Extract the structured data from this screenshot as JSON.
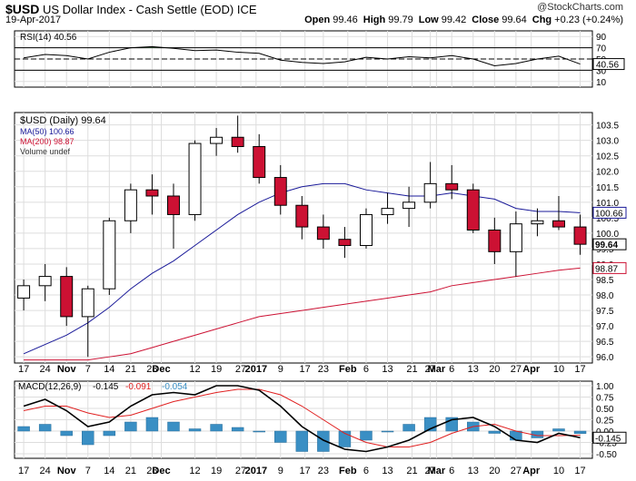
{
  "header": {
    "symbol": "$USD",
    "name": "US Dollar Index - Cash Settle (EOD)",
    "exchange": "ICE",
    "date": "19-Apr-2017",
    "watermark": "@StockCharts.com",
    "ohlc": [
      {
        "label": "Open",
        "value": "99.46"
      },
      {
        "label": "High",
        "value": "99.79"
      },
      {
        "label": "Low",
        "value": "99.42"
      },
      {
        "label": "Close",
        "value": "99.64"
      },
      {
        "label": "Chg",
        "value": "+0.23 (+0.24%)"
      }
    ]
  },
  "colors": {
    "up": "#ffffff",
    "down": "#cc1133",
    "ma50": "#1a1a99",
    "ma200": "#cc1133",
    "rsi_fill": "#5a8a5a",
    "macd_hist": "#3a8fc4",
    "macd_line": "#000000",
    "signal_line": "#e02020",
    "grid": "#dddddd"
  },
  "chart_data": [
    {
      "type": "line",
      "panel": "RSI",
      "legend": "RSI(14) 40.56",
      "last_value_label": "40.56",
      "ylim": [
        0,
        100
      ],
      "yticks": [
        "90",
        "70",
        "50",
        "30",
        "10"
      ],
      "reference_lines": [
        70,
        50,
        30
      ],
      "x": [
        "2016-10-17",
        "2016-10-24",
        "2016-10-31",
        "2016-11-07",
        "2016-11-14",
        "2016-11-21",
        "2016-11-28",
        "2016-12-05",
        "2016-12-12",
        "2016-12-19",
        "2016-12-26",
        "2017-01-02",
        "2017-01-09",
        "2017-01-16",
        "2017-01-23",
        "2017-01-30",
        "2017-02-06",
        "2017-02-13",
        "2017-02-20",
        "2017-02-27",
        "2017-03-06",
        "2017-03-13",
        "2017-03-20",
        "2017-03-27",
        "2017-04-03",
        "2017-04-10",
        "2017-04-17"
      ],
      "values": [
        52,
        58,
        56,
        50,
        62,
        70,
        72,
        69,
        65,
        66,
        62,
        60,
        48,
        44,
        42,
        45,
        53,
        50,
        54,
        52,
        56,
        50,
        38,
        42,
        50,
        55,
        41
      ]
    },
    {
      "type": "candlestick",
      "panel": "Price",
      "legend": [
        {
          "name": "$USD (Daily) 99.64"
        },
        {
          "name": "MA(50) 100.66"
        },
        {
          "name": "MA(200) 98.87"
        },
        {
          "name": "Volume undef"
        }
      ],
      "last_price_label": "99.64",
      "ma50_label": "100.66",
      "ma200_label": "98.87",
      "ylim": [
        95.8,
        103.9
      ],
      "yticks": [
        "103.5",
        "103.0",
        "102.5",
        "102.0",
        "101.5",
        "101.0",
        "100.5",
        "100.0",
        "99.5",
        "99.0",
        "98.5",
        "98.0",
        "97.5",
        "97.0",
        "96.5",
        "96.0"
      ],
      "x": [
        "2016-10-17",
        "2016-10-24",
        "2016-10-31",
        "2016-11-07",
        "2016-11-14",
        "2016-11-21",
        "2016-11-28",
        "2016-12-05",
        "2016-12-12",
        "2016-12-19",
        "2016-12-26",
        "2017-01-02",
        "2017-01-09",
        "2017-01-16",
        "2017-01-23",
        "2017-01-30",
        "2017-02-06",
        "2017-02-13",
        "2017-02-20",
        "2017-02-27",
        "2017-03-06",
        "2017-03-13",
        "2017-03-20",
        "2017-03-27",
        "2017-04-03",
        "2017-04-10",
        "2017-04-17"
      ],
      "open": [
        97.9,
        98.3,
        98.6,
        97.3,
        98.2,
        100.4,
        101.4,
        101.2,
        100.6,
        102.9,
        103.1,
        102.8,
        101.8,
        100.9,
        100.2,
        99.8,
        99.6,
        100.6,
        100.8,
        101.0,
        101.6,
        101.4,
        100.1,
        99.4,
        100.3,
        100.4,
        100.2
      ],
      "high": [
        98.5,
        99.0,
        98.9,
        98.3,
        100.5,
        101.6,
        101.9,
        101.6,
        103.0,
        103.4,
        103.8,
        103.2,
        102.2,
        101.2,
        100.6,
        100.2,
        100.8,
        101.3,
        101.5,
        102.3,
        102.2,
        101.6,
        100.5,
        100.7,
        100.8,
        101.2,
        100.6
      ],
      "low": [
        97.5,
        97.8,
        97.0,
        96.0,
        98.0,
        100.0,
        100.6,
        99.5,
        100.4,
        102.5,
        102.6,
        101.6,
        100.6,
        99.8,
        99.5,
        99.2,
        99.5,
        100.3,
        100.2,
        100.8,
        101.1,
        100.0,
        99.0,
        98.6,
        99.9,
        100.1,
        99.3
      ],
      "close": [
        98.3,
        98.6,
        97.3,
        98.2,
        100.4,
        101.4,
        101.2,
        100.6,
        102.9,
        103.1,
        102.8,
        101.8,
        100.9,
        100.2,
        99.8,
        99.6,
        100.6,
        100.8,
        101.0,
        101.6,
        101.4,
        100.1,
        99.4,
        100.3,
        100.4,
        100.2,
        99.64
      ],
      "ma50": [
        96.1,
        96.4,
        96.7,
        97.1,
        97.6,
        98.2,
        98.7,
        99.1,
        99.6,
        100.1,
        100.6,
        101.0,
        101.3,
        101.5,
        101.6,
        101.6,
        101.4,
        101.3,
        101.2,
        101.2,
        101.3,
        101.2,
        101.1,
        100.8,
        100.7,
        100.7,
        100.66
      ],
      "ma200": [
        95.9,
        95.9,
        95.9,
        95.9,
        96.0,
        96.1,
        96.3,
        96.5,
        96.7,
        96.9,
        97.1,
        97.3,
        97.4,
        97.5,
        97.6,
        97.7,
        97.8,
        97.9,
        98.0,
        98.1,
        98.3,
        98.4,
        98.5,
        98.6,
        98.7,
        98.8,
        98.87
      ]
    },
    {
      "type": "line",
      "panel": "MACD",
      "legend": [
        {
          "name": "MACD(12,26,9)",
          "value": "-0.145"
        },
        {
          "name": "",
          "value": "-0.091"
        },
        {
          "name": "",
          "value": "-0.054"
        }
      ],
      "last_value_label": "-0.145",
      "signal_value_label": "-0.091",
      "ylim": [
        -0.6,
        1.1
      ],
      "yticks": [
        "1.00",
        "0.75",
        "0.50",
        "0.25",
        "0.00",
        "-0.25",
        "-0.50"
      ],
      "x": [
        "2016-10-17",
        "2016-10-24",
        "2016-10-31",
        "2016-11-07",
        "2016-11-14",
        "2016-11-21",
        "2016-11-28",
        "2016-12-05",
        "2016-12-12",
        "2016-12-19",
        "2016-12-26",
        "2017-01-02",
        "2017-01-09",
        "2017-01-16",
        "2017-01-23",
        "2017-01-30",
        "2017-02-06",
        "2017-02-13",
        "2017-02-20",
        "2017-02-27",
        "2017-03-06",
        "2017-03-13",
        "2017-03-20",
        "2017-03-27",
        "2017-04-03",
        "2017-04-10",
        "2017-04-17"
      ],
      "macd": [
        0.55,
        0.7,
        0.45,
        0.1,
        0.2,
        0.55,
        0.8,
        0.85,
        0.8,
        1.0,
        1.0,
        0.9,
        0.55,
        0.1,
        -0.2,
        -0.4,
        -0.45,
        -0.35,
        -0.2,
        0.05,
        0.25,
        0.3,
        0.1,
        -0.2,
        -0.25,
        -0.05,
        -0.145
      ],
      "signal": [
        0.45,
        0.55,
        0.55,
        0.4,
        0.3,
        0.35,
        0.5,
        0.65,
        0.75,
        0.85,
        0.92,
        0.92,
        0.8,
        0.55,
        0.25,
        -0.05,
        -0.25,
        -0.35,
        -0.35,
        -0.25,
        -0.05,
        0.1,
        0.15,
        0.0,
        -0.1,
        -0.1,
        -0.091
      ],
      "histogram": [
        0.1,
        0.15,
        -0.1,
        -0.3,
        -0.1,
        0.2,
        0.3,
        0.2,
        0.05,
        0.15,
        0.08,
        -0.02,
        -0.25,
        -0.45,
        -0.45,
        -0.35,
        -0.2,
        0.0,
        0.15,
        0.3,
        0.3,
        0.2,
        -0.05,
        -0.2,
        -0.15,
        0.05,
        -0.054
      ]
    }
  ],
  "x_axis": {
    "labels": [
      {
        "text": "17",
        "date": "2016-10-17",
        "bold": false
      },
      {
        "text": "24",
        "date": "2016-10-24",
        "bold": false
      },
      {
        "text": "Nov",
        "date": "2016-10-31",
        "bold": true
      },
      {
        "text": "7",
        "date": "2016-11-07",
        "bold": false
      },
      {
        "text": "14",
        "date": "2016-11-14",
        "bold": false
      },
      {
        "text": "21",
        "date": "2016-11-21",
        "bold": false
      },
      {
        "text": "28",
        "date": "2016-11-28",
        "bold": false
      },
      {
        "text": "Dec",
        "date": "2016-12-01",
        "bold": true
      },
      {
        "text": "12",
        "date": "2016-12-12",
        "bold": false
      },
      {
        "text": "19",
        "date": "2016-12-19",
        "bold": false
      },
      {
        "text": "27",
        "date": "2016-12-27",
        "bold": false
      },
      {
        "text": "2017",
        "date": "2017-01-01",
        "bold": true
      },
      {
        "text": "9",
        "date": "2017-01-09",
        "bold": false
      },
      {
        "text": "17",
        "date": "2017-01-17",
        "bold": false
      },
      {
        "text": "23",
        "date": "2017-01-23",
        "bold": false
      },
      {
        "text": "Feb",
        "date": "2017-01-31",
        "bold": true
      },
      {
        "text": "6",
        "date": "2017-02-06",
        "bold": false
      },
      {
        "text": "13",
        "date": "2017-02-13",
        "bold": false
      },
      {
        "text": "21",
        "date": "2017-02-21",
        "bold": false
      },
      {
        "text": "27",
        "date": "2017-02-27",
        "bold": false
      },
      {
        "text": "Mar",
        "date": "2017-03-01",
        "bold": true
      },
      {
        "text": "6",
        "date": "2017-03-06",
        "bold": false
      },
      {
        "text": "13",
        "date": "2017-03-13",
        "bold": false
      },
      {
        "text": "20",
        "date": "2017-03-20",
        "bold": false
      },
      {
        "text": "27",
        "date": "2017-03-27",
        "bold": false
      },
      {
        "text": "Apr",
        "date": "2017-04-01",
        "bold": true
      },
      {
        "text": "10",
        "date": "2017-04-10",
        "bold": false
      },
      {
        "text": "17",
        "date": "2017-04-17",
        "bold": false
      }
    ]
  }
}
